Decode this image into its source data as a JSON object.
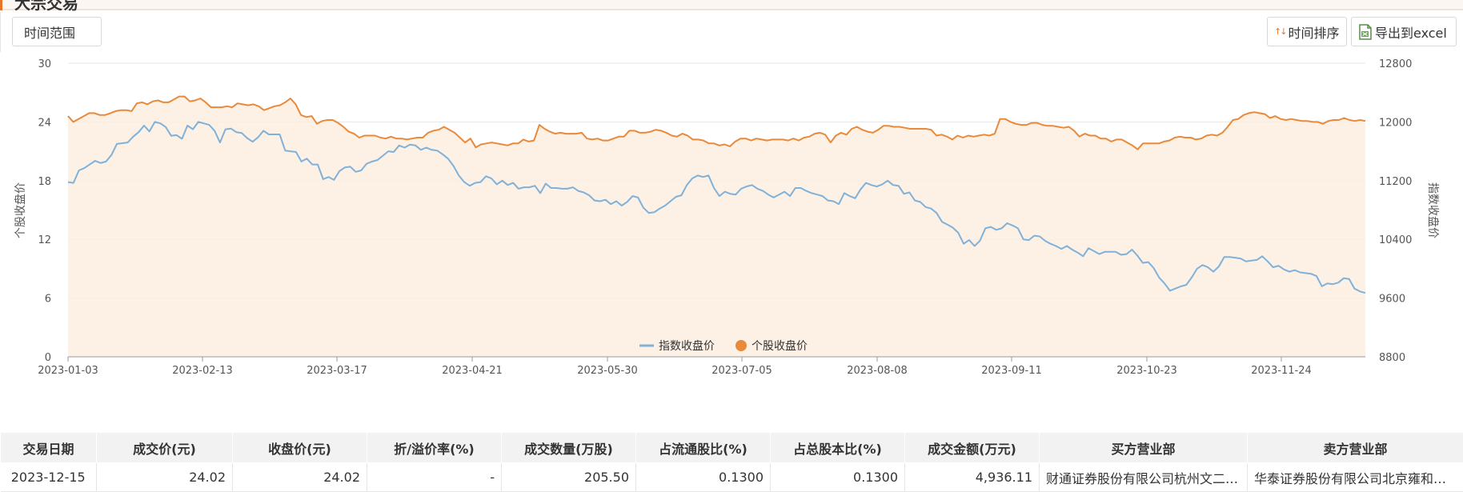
{
  "header": {
    "section_title_partial": "大宗交易"
  },
  "toolbar": {
    "range_label": "时间范围",
    "sort_label": "时间排序",
    "export_label": "导出到excel"
  },
  "chart_data": {
    "type": "line",
    "title": "",
    "x_ticks": [
      "2023-01-03",
      "2023-02-13",
      "2023-03-17",
      "2023-04-21",
      "2023-05-30",
      "2023-07-05",
      "2023-08-08",
      "2023-09-11",
      "2023-10-23",
      "2023-11-24"
    ],
    "y_left": {
      "label": "个股收盘价",
      "range": [
        0,
        30
      ],
      "ticks": [
        "0",
        "6",
        "12",
        "18",
        "24",
        "30"
      ]
    },
    "y_right": {
      "label": "指数收盘价",
      "range": [
        8800,
        12800
      ],
      "ticks": [
        "8800",
        "9600",
        "10400",
        "11200",
        "12000",
        "12800"
      ]
    },
    "grid": true,
    "legend_position": "bottom",
    "series": [
      {
        "name": "指数收盘价",
        "axis": "right",
        "color": "#7fb1d9",
        "values": [
          11180,
          11170,
          11340,
          11370,
          11420,
          11470,
          11440,
          11460,
          11550,
          11700,
          11710,
          11720,
          11800,
          11860,
          11950,
          11870,
          12000,
          11980,
          11930,
          11810,
          11820,
          11770,
          11950,
          11900,
          12000,
          11980,
          11960,
          11880,
          11720,
          11900,
          11910,
          11860,
          11850,
          11780,
          11730,
          11790,
          11880,
          11830,
          11830,
          11830,
          11610,
          11600,
          11590,
          11460,
          11500,
          11420,
          11420,
          11220,
          11250,
          11210,
          11330,
          11380,
          11390,
          11320,
          11340,
          11430,
          11460,
          11480,
          11540,
          11600,
          11590,
          11680,
          11650,
          11690,
          11680,
          11620,
          11650,
          11620,
          11610,
          11560,
          11500,
          11400,
          11270,
          11180,
          11130,
          11170,
          11180,
          11260,
          11230,
          11150,
          11200,
          11140,
          11170,
          11090,
          11110,
          11110,
          11130,
          11030,
          11160,
          11100,
          11100,
          11090,
          11090,
          11110,
          11060,
          11040,
          11000,
          10930,
          10920,
          10940,
          10880,
          10920,
          10860,
          10910,
          10990,
          10970,
          10830,
          10760,
          10770,
          10820,
          10860,
          10920,
          10980,
          11000,
          11140,
          11230,
          11270,
          11250,
          11270,
          11100,
          10990,
          11050,
          11020,
          11010,
          11090,
          11120,
          11140,
          11090,
          11060,
          11010,
          10970,
          11010,
          11050,
          10990,
          11100,
          11100,
          11060,
          11030,
          11010,
          10990,
          10930,
          10920,
          10880,
          11030,
          10990,
          10960,
          11080,
          11170,
          11140,
          11120,
          11150,
          11200,
          11140,
          11130,
          11020,
          11040,
          10930,
          10910,
          10840,
          10820,
          10760,
          10640,
          10600,
          10560,
          10490,
          10340,
          10390,
          10310,
          10380,
          10550,
          10570,
          10530,
          10550,
          10620,
          10590,
          10550,
          10400,
          10390,
          10450,
          10440,
          10380,
          10340,
          10310,
          10270,
          10310,
          10260,
          10220,
          10170,
          10280,
          10240,
          10200,
          10230,
          10230,
          10230,
          10190,
          10200,
          10260,
          10180,
          10080,
          10090,
          10010,
          9880,
          9800,
          9700,
          9730,
          9760,
          9780,
          9880,
          10000,
          10050,
          10020,
          9960,
          10030,
          10160,
          10160,
          10150,
          10140,
          10100,
          10110,
          10120,
          10170,
          10100,
          10020,
          10040,
          9990,
          9960,
          9980,
          9950,
          9940,
          9930,
          9900,
          9760,
          9800,
          9790,
          9810,
          9870,
          9860,
          9730,
          9690,
          9670
        ]
      },
      {
        "name": "个股收盘价",
        "axis": "left",
        "color": "#e9893a",
        "values": [
          24.6,
          24.0,
          24.3,
          24.6,
          24.9,
          24.9,
          24.7,
          24.7,
          24.9,
          25.1,
          25.2,
          25.2,
          25.1,
          25.9,
          26.0,
          25.8,
          26.1,
          26.2,
          26.0,
          26.0,
          26.3,
          26.6,
          26.6,
          26.1,
          26.2,
          26.4,
          26.0,
          25.5,
          25.5,
          25.5,
          25.6,
          25.5,
          25.9,
          25.8,
          25.7,
          25.8,
          25.6,
          25.2,
          25.4,
          25.6,
          25.7,
          26.0,
          26.4,
          25.8,
          24.7,
          24.5,
          24.6,
          23.8,
          24.1,
          24.2,
          24.2,
          23.9,
          23.5,
          23.0,
          22.8,
          22.4,
          22.6,
          22.6,
          22.6,
          22.4,
          22.3,
          22.5,
          22.3,
          22.3,
          22.2,
          22.3,
          22.4,
          22.4,
          22.9,
          23.1,
          23.2,
          23.5,
          23.2,
          22.9,
          22.4,
          21.9,
          22.3,
          21.4,
          21.7,
          21.8,
          21.9,
          21.8,
          21.7,
          21.6,
          21.8,
          21.8,
          22.2,
          22.0,
          22.1,
          23.7,
          23.3,
          23.0,
          22.8,
          22.9,
          22.8,
          22.8,
          22.8,
          22.9,
          22.3,
          22.2,
          22.3,
          22.1,
          22.1,
          22.3,
          22.5,
          22.5,
          23.1,
          23.1,
          22.9,
          22.9,
          23.0,
          23.2,
          23.1,
          22.9,
          22.6,
          22.5,
          22.8,
          22.6,
          22.2,
          22.2,
          22.1,
          21.8,
          21.8,
          21.6,
          21.7,
          21.5,
          22.0,
          22.3,
          22.3,
          22.1,
          22.3,
          22.2,
          22.1,
          22.2,
          22.2,
          22.2,
          22.1,
          22.3,
          22.1,
          22.4,
          22.5,
          22.8,
          22.9,
          22.7,
          21.9,
          22.6,
          22.9,
          22.7,
          23.3,
          23.5,
          23.2,
          23.0,
          22.9,
          23.2,
          23.6,
          23.6,
          23.5,
          23.5,
          23.4,
          23.3,
          23.3,
          23.3,
          23.3,
          23.2,
          22.6,
          22.7,
          22.5,
          22.2,
          22.6,
          22.4,
          22.6,
          22.5,
          22.6,
          22.7,
          22.6,
          22.8,
          24.3,
          24.3,
          24.0,
          23.8,
          23.7,
          23.7,
          23.9,
          23.9,
          23.7,
          23.6,
          23.6,
          23.5,
          23.4,
          23.5,
          23.1,
          22.5,
          22.8,
          22.6,
          22.6,
          22.3,
          22.3,
          22.0,
          22.2,
          22.2,
          21.9,
          21.6,
          21.2,
          21.8,
          21.8,
          21.8,
          21.8,
          22.0,
          22.1,
          22.4,
          22.5,
          22.4,
          22.4,
          22.2,
          22.3,
          22.6,
          22.7,
          22.6,
          22.9,
          23.5,
          24.2,
          24.3,
          24.7,
          24.9,
          25.0,
          24.9,
          24.8,
          24.4,
          24.6,
          24.3,
          24.2,
          24.3,
          24.2,
          24.1,
          24.1,
          24.0,
          24.0,
          23.8,
          24.1,
          24.2,
          24.2,
          24.4,
          24.2,
          24.1,
          24.2,
          24.1
        ]
      }
    ]
  },
  "legend": [
    {
      "label": "指数收盘价",
      "color": "#7fb1d9"
    },
    {
      "label": "个股收盘价",
      "color": "#e9893a"
    }
  ],
  "table": {
    "columns": [
      "交易日期",
      "成交价(元)",
      "收盘价(元)",
      "折/溢价率(%)",
      "成交数量(万股)",
      "占流通股比(%)",
      "占总股本比(%)",
      "成交金额(万元)",
      "买方营业部",
      "卖方营业部"
    ],
    "rows": [
      [
        "2023-12-15",
        "24.02",
        "24.02",
        "-",
        "205.50",
        "0.1300",
        "0.1300",
        "4,936.11",
        "财通证券股份有限公司杭州文二西路证券营业部",
        "华泰证券股份有限公司北京雍和宫证券营业部"
      ]
    ]
  }
}
